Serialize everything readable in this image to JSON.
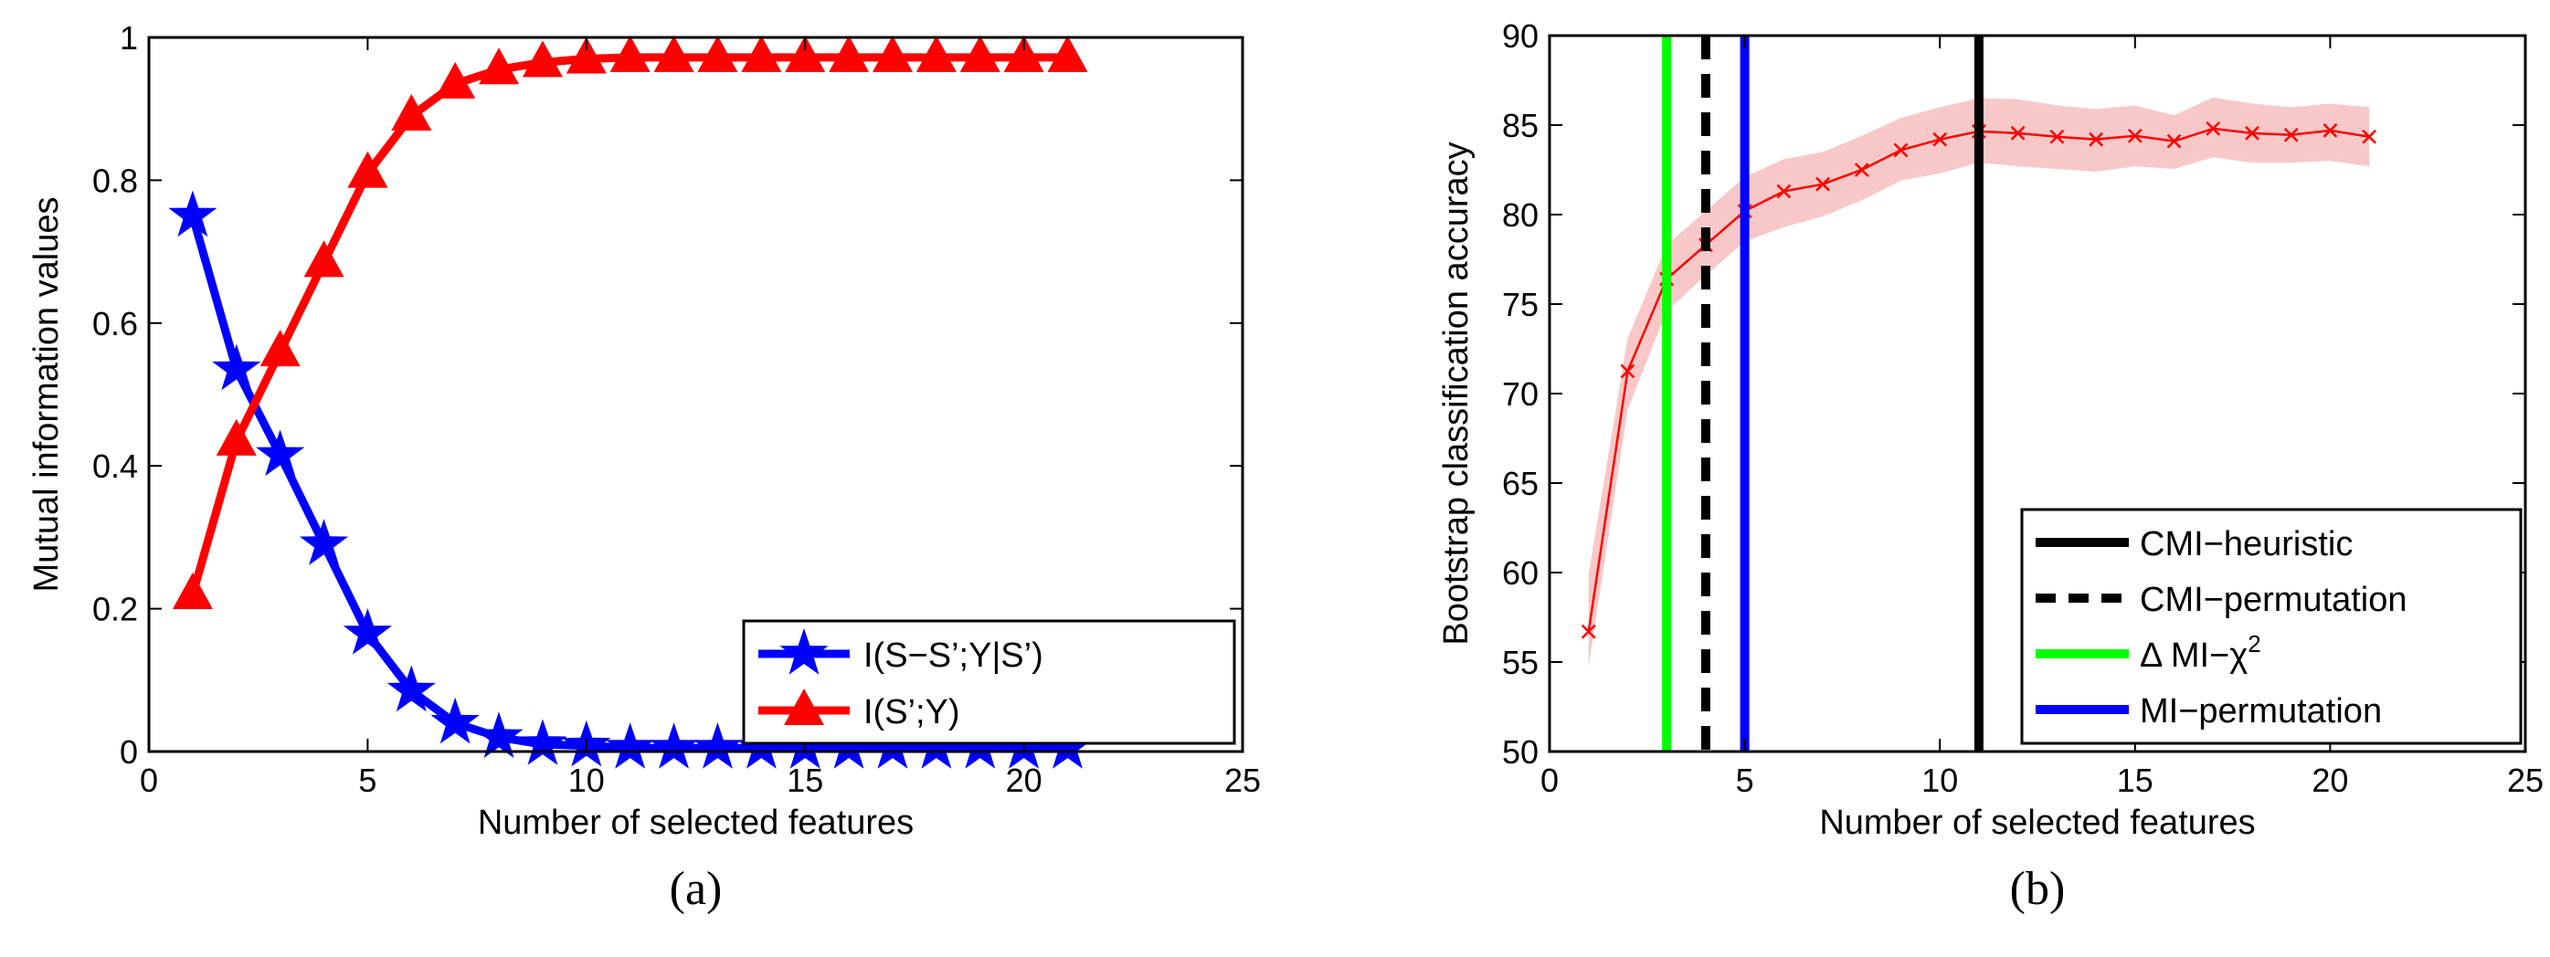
{
  "chart_data": [
    {
      "type": "line",
      "caption": "(a)",
      "xlabel": "Number of selected features",
      "ylabel": "Mutual information values",
      "xlim": [
        0,
        25
      ],
      "ylim": [
        0,
        1
      ],
      "xticks": [
        0,
        5,
        10,
        15,
        20,
        25
      ],
      "yticks": [
        0,
        0.2,
        0.4,
        0.6,
        0.8,
        1
      ],
      "legend_position": "bottom-right",
      "x": [
        1,
        2,
        3,
        4,
        5,
        6,
        7,
        8,
        9,
        10,
        11,
        12,
        13,
        14,
        15,
        16,
        17,
        18,
        19,
        20,
        21
      ],
      "series": [
        {
          "name": "I(S−S’;Y|S’)",
          "color": "#0000ff",
          "marker": "star",
          "values": [
            0.75,
            0.535,
            0.415,
            0.29,
            0.165,
            0.085,
            0.04,
            0.02,
            0.01,
            0.008,
            0.005,
            0.005,
            0.005,
            0.005,
            0.005,
            0.005,
            0.005,
            0.005,
            0.005,
            0.005,
            0.005
          ]
        },
        {
          "name": "I(S’;Y)",
          "color": "#ff0000",
          "marker": "triangle",
          "values": [
            0.22,
            0.435,
            0.56,
            0.685,
            0.81,
            0.89,
            0.935,
            0.955,
            0.965,
            0.97,
            0.972,
            0.972,
            0.972,
            0.972,
            0.972,
            0.972,
            0.972,
            0.972,
            0.972,
            0.972,
            0.972
          ]
        }
      ]
    },
    {
      "type": "line",
      "caption": "(b)",
      "xlabel": "Number of selected features",
      "ylabel": "Bootstrap classification accuracy",
      "xlim": [
        0,
        25
      ],
      "ylim": [
        50,
        90
      ],
      "xticks": [
        0,
        5,
        10,
        15,
        20,
        25
      ],
      "yticks": [
        50,
        55,
        60,
        65,
        70,
        75,
        80,
        85,
        90
      ],
      "legend_position": "bottom-right",
      "x": [
        1,
        2,
        3,
        4,
        5,
        6,
        7,
        8,
        9,
        10,
        11,
        12,
        13,
        14,
        15,
        16,
        17,
        18,
        19,
        20,
        21
      ],
      "accuracy": {
        "color": "#ff0000",
        "band_color": "#f8c8c8",
        "marker": "x",
        "values": [
          56.7,
          71.25,
          76.4,
          78.3,
          80.2,
          81.3,
          81.7,
          82.5,
          83.6,
          84.2,
          84.65,
          84.55,
          84.35,
          84.2,
          84.4,
          84.1,
          84.8,
          84.55,
          84.45,
          84.7,
          84.35
        ],
        "upper": [
          59.9,
          73.1,
          78.3,
          80.2,
          82.1,
          83.1,
          83.5,
          84.4,
          85.4,
          86.0,
          86.5,
          86.45,
          86.1,
          85.9,
          86.1,
          85.55,
          86.55,
          86.2,
          86.0,
          86.2,
          86.0
        ],
        "lower": [
          54.7,
          69.1,
          74.6,
          76.6,
          78.5,
          79.3,
          79.9,
          80.8,
          81.9,
          82.3,
          82.9,
          82.7,
          82.55,
          82.4,
          82.7,
          82.55,
          83.2,
          82.9,
          82.9,
          83.0,
          82.7
        ]
      },
      "vlines": [
        {
          "name": "CMI−heuristic",
          "x": 11,
          "color": "#000000",
          "style": "solid"
        },
        {
          "name": "CMI−permutation",
          "x": 4,
          "color": "#000000",
          "style": "dashed"
        },
        {
          "name": "Δ MI−χ",
          "superscript": "2",
          "x": 3,
          "color": "#00ff00",
          "style": "solid"
        },
        {
          "name": "MI−permutation",
          "x": 5,
          "color": "#0000ff",
          "style": "solid"
        }
      ]
    }
  ]
}
